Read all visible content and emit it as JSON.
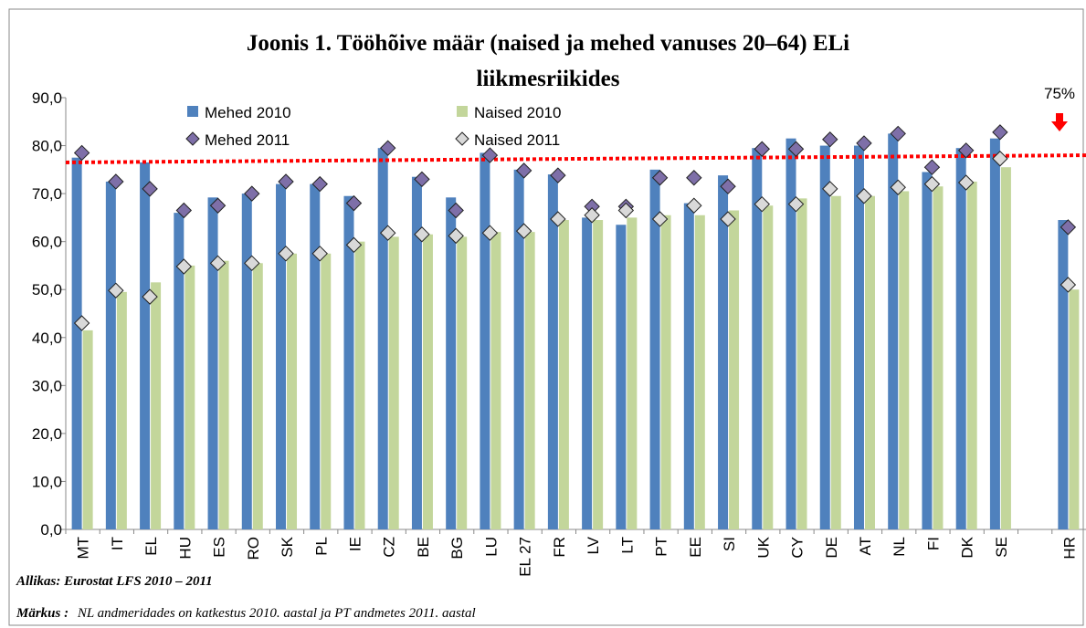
{
  "chart_data": {
    "type": "bar",
    "title": [
      "Joonis 1. Tööhõive määr (naised ja mehed vanuses 20–64) ELi",
      "liikmesriikides"
    ],
    "categories": [
      "MT",
      "IT",
      "EL",
      "HU",
      "ES",
      "RO",
      "SK",
      "PL",
      "IE",
      "CZ",
      "BE",
      "BG",
      "LU",
      "EL 27",
      "FR",
      "LV",
      "LT",
      "PT",
      "EE",
      "SI",
      "UK",
      "CY",
      "DE",
      "AT",
      "NL",
      "FI",
      "DK",
      "SE",
      null,
      "HR"
    ],
    "series": [
      {
        "name": "Mehed  2010",
        "color": "#4f81bd",
        "mark": "bar",
        "values": [
          77.5,
          72.5,
          76.5,
          66,
          69.2,
          70,
          72,
          72,
          69.5,
          79.5,
          73.5,
          69.2,
          78.5,
          75,
          74,
          65,
          63.5,
          75,
          68,
          73.8,
          79.5,
          81.5,
          80,
          80,
          82.5,
          74.5,
          79.5,
          81.5,
          null,
          64.5
        ]
      },
      {
        "name": "Naised 2010",
        "color": "#c3d69b",
        "mark": "bar",
        "values": [
          41.5,
          49.5,
          51.5,
          55,
          56,
          55.5,
          57.5,
          57.5,
          60,
          61,
          61.5,
          61,
          62,
          62,
          64.5,
          64.5,
          65,
          65.5,
          65.5,
          66.5,
          67.5,
          69,
          69.5,
          69.5,
          70.5,
          71.5,
          72.5,
          75.5,
          null,
          50
        ]
      },
      {
        "name": "Mehed 2011",
        "color": "#7e6fa8",
        "mark": "diamond",
        "values": [
          78.5,
          72.5,
          71,
          66.5,
          67.5,
          70,
          72.5,
          72,
          68,
          79.5,
          73,
          66.5,
          78,
          74.8,
          73.8,
          67.3,
          67.3,
          73.3,
          73.3,
          71.5,
          79.3,
          79.3,
          81.3,
          80.5,
          82.5,
          75.5,
          79,
          82.8,
          null,
          63
        ]
      },
      {
        "name": "Naised 2011",
        "color": "#d9d9d9",
        "mark": "diamond",
        "values": [
          43,
          49.8,
          48.5,
          54.8,
          55.5,
          55.5,
          57.5,
          57.5,
          59.3,
          61.8,
          61.5,
          61.2,
          61.8,
          62.2,
          64.7,
          65.5,
          66.5,
          64.7,
          67.5,
          64.7,
          67.8,
          67.8,
          71,
          69.5,
          71.3,
          72,
          72.3,
          77.3,
          null,
          51
        ]
      }
    ],
    "ylim": [
      0,
      90
    ],
    "yticks": [
      {
        "value": 0,
        "label": "0,0"
      },
      {
        "value": 10,
        "label": "10,0"
      },
      {
        "value": 20,
        "label": "20,0"
      },
      {
        "value": 30,
        "label": "30,0"
      },
      {
        "value": 40,
        "label": "40,0"
      },
      {
        "value": 50,
        "label": "50,0"
      },
      {
        "value": 60,
        "label": "60,0"
      },
      {
        "value": 70,
        "label": "70,0"
      },
      {
        "value": 80,
        "label": "80,0"
      },
      {
        "value": 90,
        "label": "90,0"
      }
    ],
    "target_line": {
      "label": "75%",
      "color": "#ff0000",
      "start": 76.5,
      "end": 78
    },
    "source": "Allikas: Eurostat LFS 2010  – 2011",
    "note": {
      "label": "Märkus :",
      "text": "NL andmeridades on katkestus 2010. aastal ja PT andmetes 2011. aastal"
    }
  }
}
